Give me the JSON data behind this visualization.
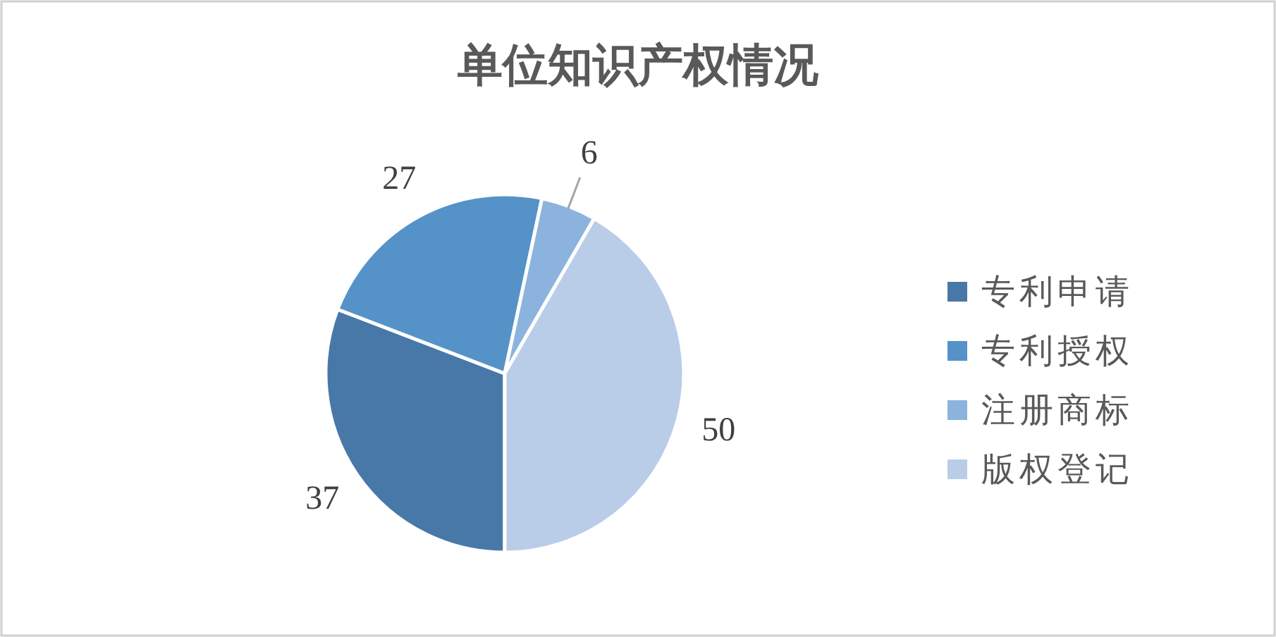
{
  "chart_data": {
    "type": "pie",
    "title": "单位知识产权情况",
    "categories": [
      "专利申请",
      "专利授权",
      "注册商标",
      "版权登记"
    ],
    "values": [
      37,
      27,
      6,
      50
    ],
    "colors": [
      "#4878a8",
      "#5592c8",
      "#8cb3de",
      "#b9cde8"
    ],
    "data_labels": true,
    "legend": "right"
  }
}
